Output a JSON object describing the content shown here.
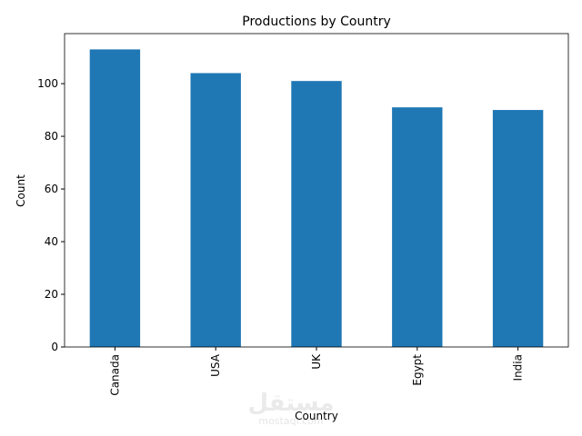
{
  "chart_data": {
    "type": "bar",
    "title": "Productions by Country",
    "x_label": "Country",
    "y_label": "Count",
    "categories": [
      "Canada",
      "USA",
      "UK",
      "Egypt",
      "India"
    ],
    "values": [
      113,
      104,
      101,
      91,
      90
    ],
    "color": "#1f77b4",
    "ylim": [
      0,
      119
    ],
    "yticks": [
      0,
      20,
      40,
      60,
      80,
      100
    ],
    "grid": false
  },
  "watermark": {
    "arabic": "مستقل",
    "latin": "mostaql.com"
  }
}
